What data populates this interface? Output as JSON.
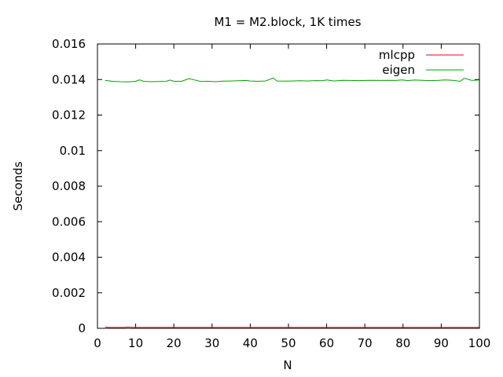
{
  "chart_data": {
    "type": "line",
    "title": "M1 = M2.block, 1K times",
    "xlabel": "N",
    "ylabel": "Seconds",
    "xlim": [
      0,
      100
    ],
    "ylim": [
      0,
      0.016
    ],
    "x_ticks": [
      0,
      10,
      20,
      30,
      40,
      50,
      60,
      70,
      80,
      90,
      100
    ],
    "x_tick_labels": [
      "0",
      "10",
      "20",
      "30",
      "40",
      "50",
      "60",
      "70",
      "80",
      "90",
      "100"
    ],
    "y_ticks": [
      0,
      0.002,
      0.004,
      0.006,
      0.008,
      0.01,
      0.012,
      0.014,
      0.016
    ],
    "y_tick_labels": [
      "0",
      "0.002",
      "0.004",
      "0.006",
      "0.008",
      "0.01",
      "0.012",
      "0.014",
      "0.016"
    ],
    "grid": false,
    "legend_position": "top-right",
    "series": [
      {
        "name": "mlcpp",
        "color": "#ff0000",
        "x": [
          2,
          3,
          5,
          7,
          8,
          9,
          12,
          16,
          20,
          30,
          40,
          50,
          60,
          70,
          80,
          90,
          100
        ],
        "values": [
          7e-05,
          5e-05,
          5e-05,
          5e-05,
          7e-05,
          5e-05,
          5e-05,
          5e-05,
          5e-05,
          5e-05,
          5e-05,
          5e-05,
          5e-05,
          5e-05,
          5e-05,
          5e-05,
          5e-05
        ]
      },
      {
        "name": "eigen",
        "color": "#00a000",
        "x": [
          2,
          4,
          6,
          8,
          10,
          11,
          12,
          14,
          16,
          18,
          19,
          20,
          22,
          24,
          25,
          27,
          29,
          31,
          33,
          35,
          37,
          39,
          40,
          42,
          44,
          46,
          47,
          49,
          51,
          53,
          55,
          57,
          59,
          60,
          62,
          64,
          66,
          68,
          70,
          72,
          74,
          76,
          78,
          80,
          81,
          83,
          85,
          87,
          89,
          91,
          93,
          95,
          96,
          98,
          100
        ],
        "values": [
          0.01395,
          0.0139,
          0.01388,
          0.01387,
          0.0139,
          0.01398,
          0.0139,
          0.01388,
          0.01389,
          0.0139,
          0.01397,
          0.0139,
          0.0139,
          0.01405,
          0.014,
          0.01389,
          0.0139,
          0.01388,
          0.01391,
          0.01392,
          0.01393,
          0.01395,
          0.01392,
          0.0139,
          0.01392,
          0.01408,
          0.01392,
          0.01391,
          0.01392,
          0.01393,
          0.01392,
          0.01394,
          0.01393,
          0.01398,
          0.01392,
          0.01396,
          0.01395,
          0.01394,
          0.01395,
          0.01396,
          0.01395,
          0.01396,
          0.01395,
          0.01398,
          0.01394,
          0.01397,
          0.01396,
          0.01394,
          0.01395,
          0.01398,
          0.01396,
          0.0139,
          0.01407,
          0.01395,
          0.01398
        ]
      }
    ]
  }
}
